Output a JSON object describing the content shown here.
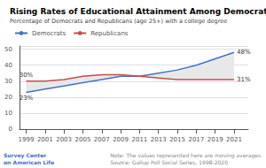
{
  "chart_data": {
    "type": "line",
    "title": "Rising Rates of Educational Attainment Among Democrats",
    "subtitle": "Percentage of Democrats and Republicans (age 25+) with a college degree",
    "x": [
      1999,
      2001,
      2003,
      2005,
      2007,
      2009,
      2011,
      2013,
      2015,
      2017,
      2019,
      2021
    ],
    "series": [
      {
        "name": "Democrats",
        "color": "#4472c4",
        "values": [
          23,
          25,
          27,
          29,
          31,
          33,
          33,
          35,
          37,
          40,
          44,
          48
        ],
        "value_labels": [
          "23%",
          null,
          null,
          null,
          null,
          null,
          null,
          null,
          null,
          null,
          null,
          "48%"
        ]
      },
      {
        "name": "Republicans",
        "color": "#c0504d",
        "values": [
          30,
          30,
          31,
          33,
          34,
          34,
          33,
          32,
          31,
          31,
          31,
          31
        ],
        "value_labels": [
          "30%",
          null,
          null,
          null,
          null,
          null,
          null,
          null,
          null,
          null,
          null,
          "31%"
        ]
      }
    ],
    "fill_color": "#e8e8e8",
    "xlim": [
      1998.3,
      2022.5
    ],
    "xticks": [
      1999,
      2001,
      2003,
      2005,
      2007,
      2009,
      2011,
      2013,
      2015,
      2017,
      2019,
      2021
    ],
    "ylim": [
      0,
      52
    ],
    "yticks": [
      0,
      10,
      20,
      30,
      40,
      50
    ],
    "grid": true,
    "legend": "upper left",
    "data_labels": true,
    "note": "Note: The values represented here are moving averages.\nSource: Gallup Poll Social Series, 1998-2020",
    "annotations": [
      "Survey Center",
      "on American Life"
    ]
  }
}
